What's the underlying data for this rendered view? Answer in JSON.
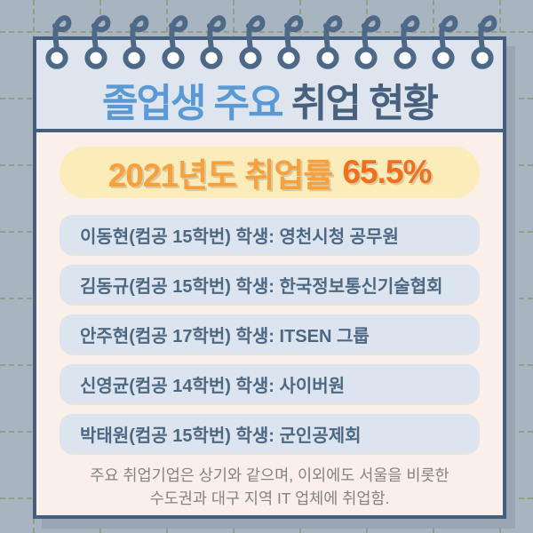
{
  "title": {
    "part1": "졸업생 주요",
    "part2": "취업 현황"
  },
  "banner": {
    "label": "2021년도 취업률",
    "value": "65.5%"
  },
  "students": [
    {
      "info": "이동현(컴공 15학번) 학생: ",
      "company": "영천시청 공무원"
    },
    {
      "info": "김동규(컴공 15학번) 학생: ",
      "company": "한국정보통신기술협회"
    },
    {
      "info": "안주현(컴공 17학번) 학생: ",
      "company": "ITSEN 그룹"
    },
    {
      "info": "신영균(컴공 14학번) 학생: ",
      "company": "사이버원"
    },
    {
      "info": "박태원(컴공 15학번) 학생: ",
      "company": "군인공제회"
    }
  ],
  "footer": {
    "line1": "주요 취업기업은 상기와 같으며, 이외에도 서울을 비롯한",
    "line2": "수도권과 대구 지역 IT 업체에 취업함."
  },
  "colors": {
    "background": "#a9b4c1",
    "grid_dash": "#7f8f58",
    "card_border": "#44607e",
    "header_bg": "#dfe5ee",
    "body_bg": "#faf0e9",
    "title_blue": "#5a99d4",
    "title_dark": "#47617e",
    "banner_bg": "#fcecba",
    "banner_orange_light": "#f8a03d",
    "banner_orange_dark": "#f2701d",
    "row_bg": "#dce4ef",
    "row_text": "#4d6883",
    "note_text": "#84857d"
  },
  "icons": {
    "binder_ring": "binder-ring-icon"
  }
}
